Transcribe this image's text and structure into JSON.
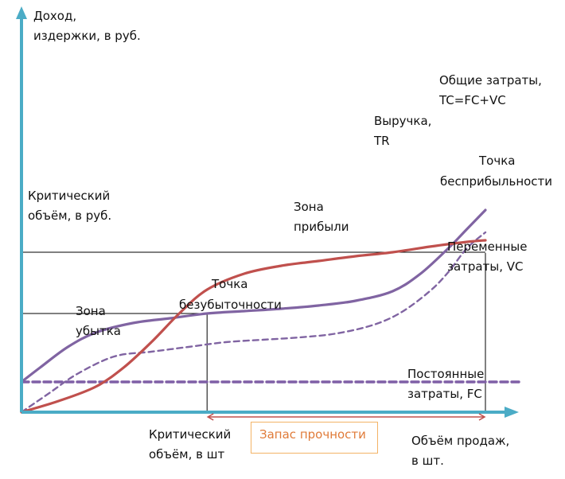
{
  "chart_data": {
    "type": "line",
    "title": "",
    "ylabel": [
      "Доход,",
      "издержки, в руб."
    ],
    "xlabel": [
      "Объём продаж,",
      "в шт."
    ],
    "colors": {
      "axis": "#4bacc6",
      "revenue": "#c0504d",
      "total_cost": "#8064a2",
      "variable_cost": "#8064a2",
      "fixed_cost": "#7f5fa6",
      "margin": "#c0504d",
      "guide": "#000000"
    },
    "series": [
      {
        "name": [
          "Выручка,",
          "TR"
        ],
        "style": "solid",
        "x": [
          0,
          8,
          16,
          22,
          28,
          34,
          40,
          48,
          56,
          64,
          72,
          80,
          88,
          96,
          100
        ],
        "y": [
          0,
          7,
          16,
          28,
          44,
          62,
          77,
          87,
          92,
          95,
          98,
          100.5,
          104,
          107,
          108
        ]
      },
      {
        "name": [
          "Общие затраты,",
          "TC=FC+VC"
        ],
        "style": "solid",
        "x": [
          0,
          4,
          10,
          16,
          24,
          32,
          40,
          48,
          56,
          64,
          72,
          80,
          86,
          92,
          96,
          100
        ],
        "y": [
          19,
          28,
          41,
          50,
          56,
          59,
          62,
          63.5,
          65,
          67,
          70,
          76,
          87,
          103,
          115,
          127
        ]
      },
      {
        "name": [
          "Переменные",
          "затраты, VC"
        ],
        "style": "dashed",
        "x": [
          0,
          6,
          12,
          20,
          28,
          36,
          44,
          52,
          60,
          68,
          76,
          82,
          88,
          92,
          96,
          100
        ],
        "y": [
          0,
          12,
          24,
          35,
          38,
          41,
          44,
          45.5,
          47,
          49.5,
          55,
          63,
          76,
          88,
          103,
          113
        ]
      },
      {
        "name": [
          "Постоянные",
          "затраты, FC"
        ],
        "style": "dashed",
        "x": [
          0,
          100
        ],
        "y": [
          19,
          19
        ]
      }
    ],
    "annotations": [
      {
        "id": "break_even",
        "text": [
          "Точка",
          "безубыточности"
        ]
      },
      {
        "id": "zero_profit",
        "text": [
          "Точка",
          "бесприбыльности"
        ]
      },
      {
        "id": "profit_zone",
        "text": [
          "Зона",
          "прибыли"
        ]
      },
      {
        "id": "loss_zone",
        "text": [
          "Зона",
          "убытка"
        ]
      },
      {
        "id": "critical_volume_rub",
        "text": [
          "Критический",
          "объём, в руб."
        ]
      },
      {
        "id": "critical_volume_units",
        "text": [
          "Критический",
          "объём, в шт"
        ]
      },
      {
        "id": "safety_margin",
        "text": "Запас прочности"
      }
    ],
    "xlim": [
      0,
      104
    ],
    "ylim": [
      0,
      165
    ],
    "grid": false,
    "legend": "none"
  }
}
